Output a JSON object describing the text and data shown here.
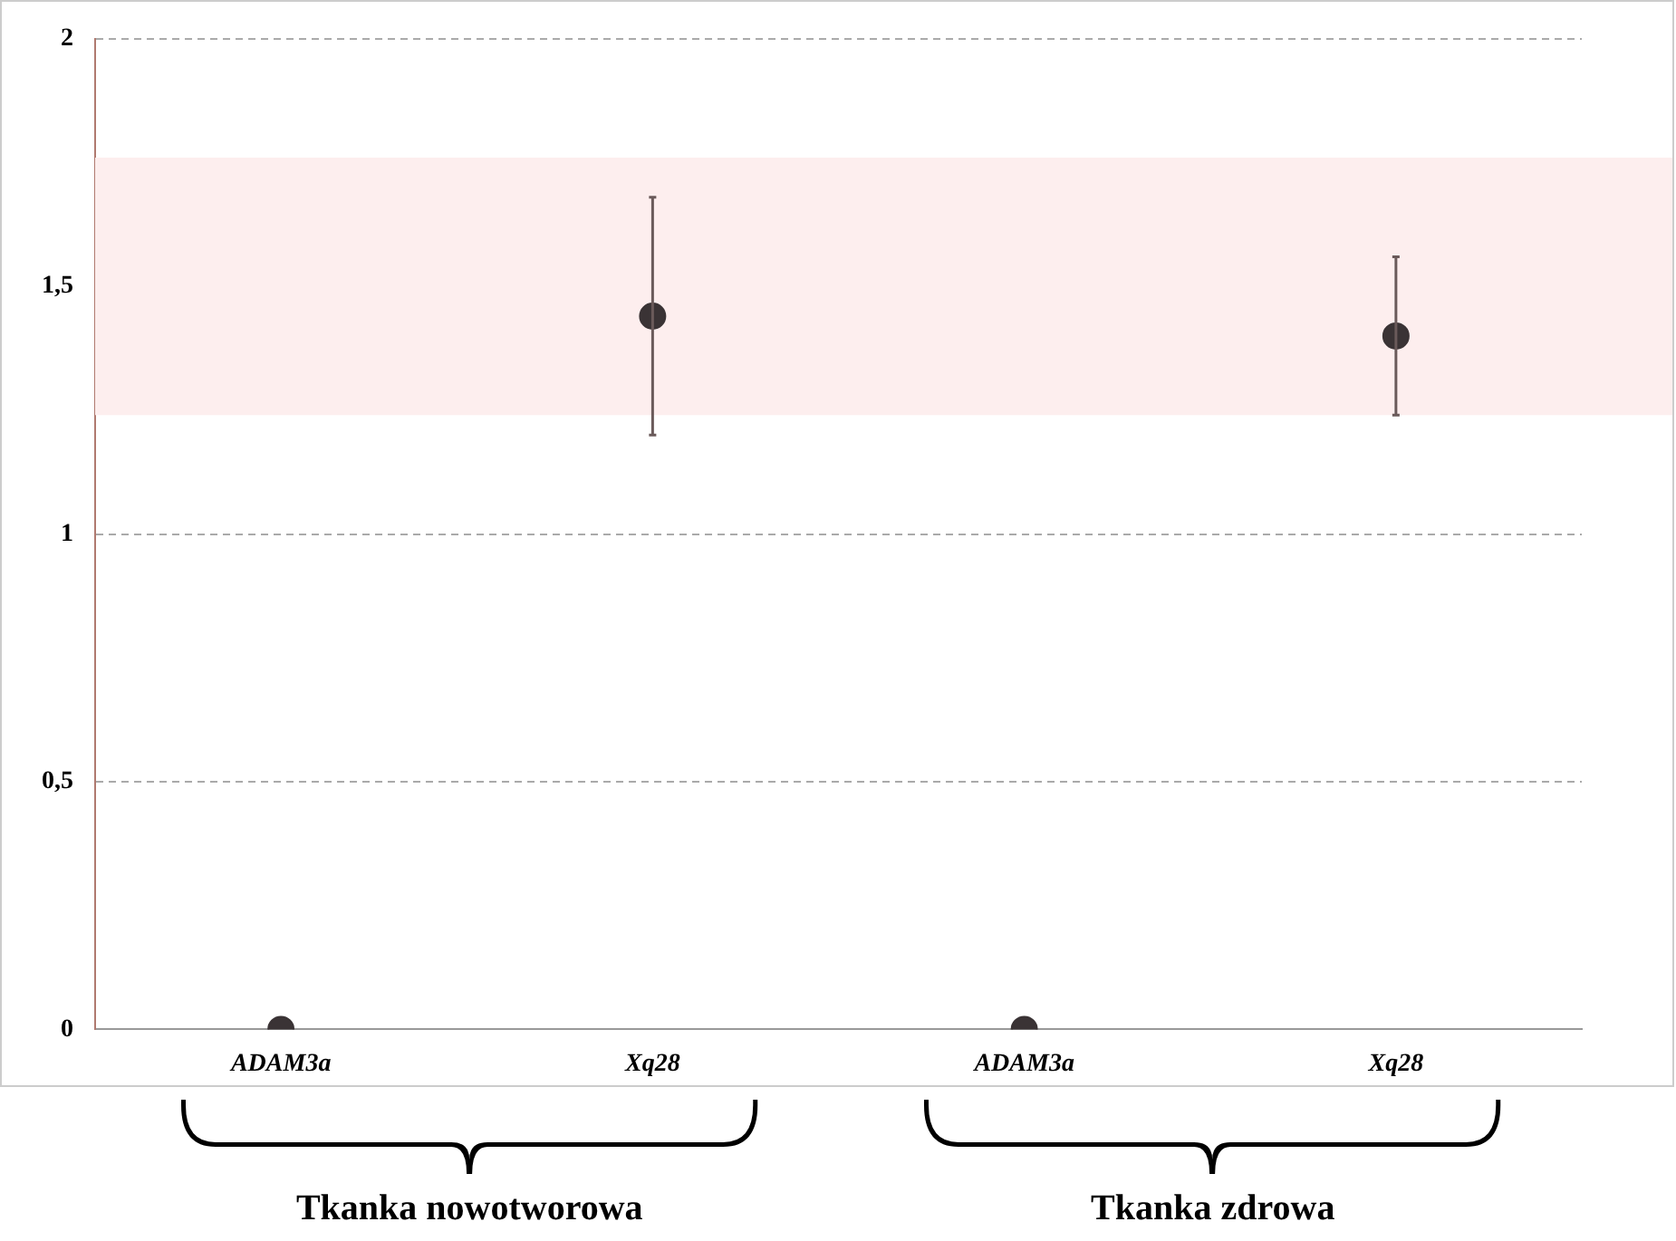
{
  "chart_data": {
    "type": "scatter",
    "categories": [
      "ADAM3a",
      "Xq28",
      "ADAM3a",
      "Xq28"
    ],
    "values": [
      0,
      1.44,
      0,
      1.4
    ],
    "errors": [
      null,
      0.24,
      null,
      0.16
    ],
    "color": "#3a3335",
    "marker": "circle",
    "ylim": [
      0,
      2
    ],
    "yticks": [
      0,
      {
        "value": 0.5,
        "label": "0,5"
      },
      1,
      {
        "value": 1.5,
        "label": "1,5"
      },
      2
    ],
    "grid": "y",
    "bands": [
      {
        "axis": "y",
        "from": 1.24,
        "to": 1.76,
        "label": null,
        "color": "#fdeeee"
      }
    ],
    "annotations": [
      "Tkanka nowotworowa",
      "Tkanka zdrowa"
    ]
  }
}
